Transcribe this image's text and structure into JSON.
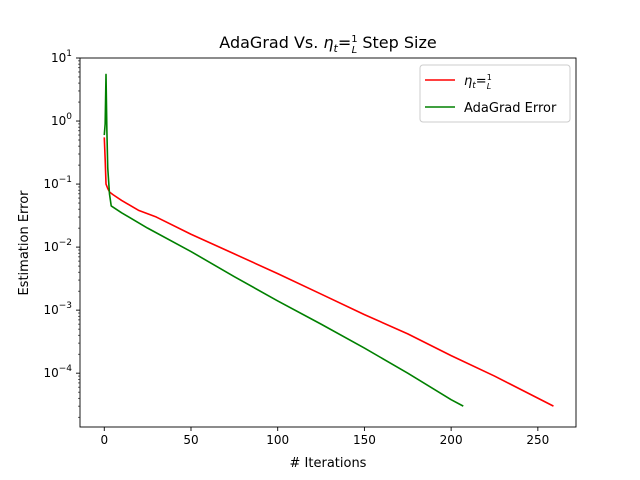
{
  "chart_data": {
    "type": "line",
    "title": {
      "prefix": "AdaGrad Vs. ",
      "eta": "η",
      "eta_sub": "t",
      "eq": "=",
      "frac_num": "1",
      "frac_den": "L",
      "suffix": " Step Size"
    },
    "xlabel": "# Iterations",
    "ylabel": "Estimation Error",
    "xlim": [
      -14,
      272
    ],
    "ylim": [
      1.4e-05,
      10
    ],
    "yscale": "log",
    "x_ticks": [
      {
        "value": 0,
        "label": "0"
      },
      {
        "value": 50,
        "label": "50"
      },
      {
        "value": 100,
        "label": "100"
      },
      {
        "value": 150,
        "label": "150"
      },
      {
        "value": 200,
        "label": "200"
      },
      {
        "value": 250,
        "label": "250"
      }
    ],
    "y_ticks": [
      {
        "value": 0.0001,
        "base": "10",
        "exp": "−4"
      },
      {
        "value": 0.001,
        "base": "10",
        "exp": "−3"
      },
      {
        "value": 0.01,
        "base": "10",
        "exp": "−2"
      },
      {
        "value": 0.1,
        "base": "10",
        "exp": "−1"
      },
      {
        "value": 1,
        "base": "10",
        "exp": "0"
      },
      {
        "value": 10,
        "base": "10",
        "exp": "1"
      }
    ],
    "grid": false,
    "legend_position": "top-right",
    "series": [
      {
        "name": {
          "eta": "η",
          "sub": "t",
          "eq": "=",
          "num": "1",
          "den": "L"
        },
        "color": "#ff0000",
        "points": [
          [
            0,
            0.55
          ],
          [
            0.5,
            0.25
          ],
          [
            1,
            0.1
          ],
          [
            2,
            0.085
          ],
          [
            3,
            0.075
          ],
          [
            5,
            0.068
          ],
          [
            10,
            0.055
          ],
          [
            20,
            0.038
          ],
          [
            30,
            0.03
          ],
          [
            50,
            0.016
          ],
          [
            75,
            0.0078
          ],
          [
            100,
            0.0038
          ],
          [
            125,
            0.0018
          ],
          [
            150,
            0.00085
          ],
          [
            175,
            0.00042
          ],
          [
            200,
            0.00019
          ],
          [
            225,
            9e-05
          ],
          [
            259,
            3e-05
          ]
        ]
      },
      {
        "name": {
          "text": "AdaGrad Error"
        },
        "color": "#008000",
        "points": [
          [
            0,
            0.6
          ],
          [
            0.5,
            0.9
          ],
          [
            1,
            5.5
          ],
          [
            1.5,
            0.7
          ],
          [
            2,
            0.18
          ],
          [
            3,
            0.07
          ],
          [
            4,
            0.045
          ],
          [
            10,
            0.035
          ],
          [
            25,
            0.02
          ],
          [
            50,
            0.0085
          ],
          [
            75,
            0.0034
          ],
          [
            100,
            0.0014
          ],
          [
            125,
            0.0006
          ],
          [
            150,
            0.00025
          ],
          [
            175,
            0.0001
          ],
          [
            200,
            3.8e-05
          ],
          [
            207,
            3e-05
          ]
        ]
      }
    ]
  }
}
